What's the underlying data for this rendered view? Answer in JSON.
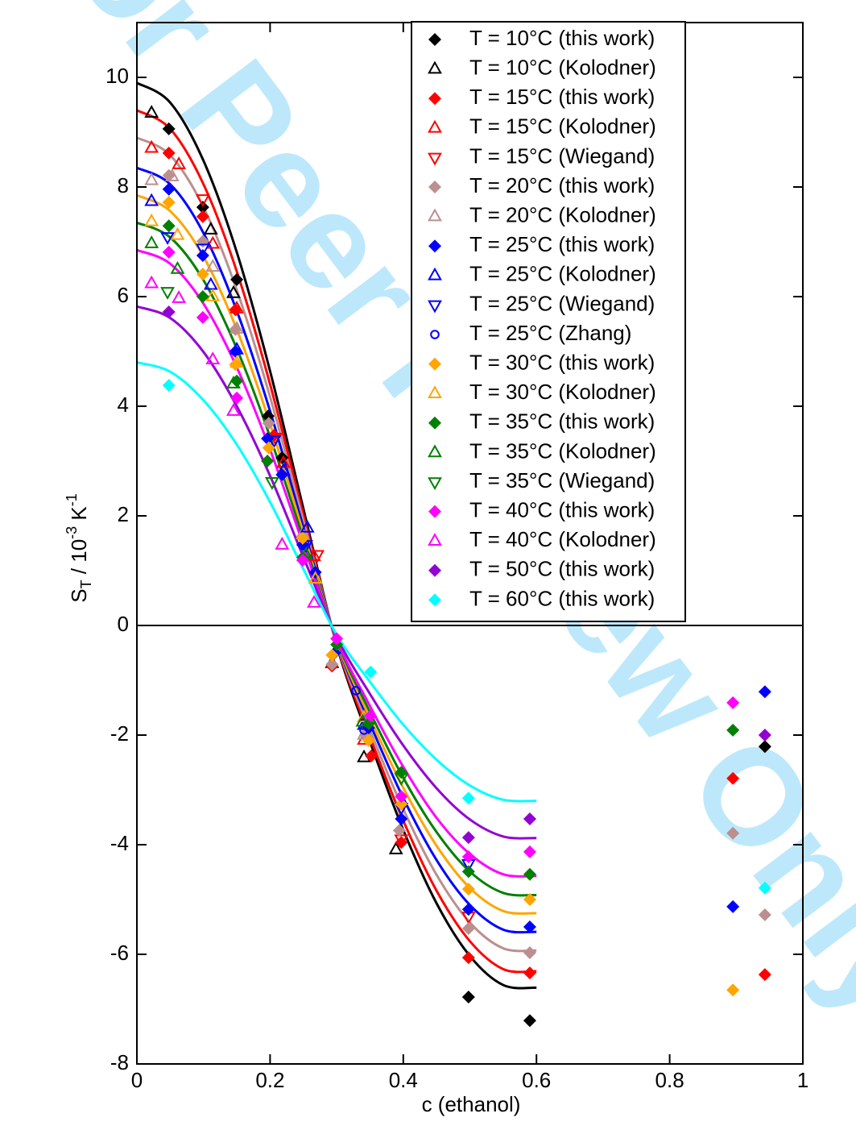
{
  "chart_data": {
    "type": "scatter",
    "watermark": "For Peer Review Only",
    "xlabel": "c (ethanol)",
    "ylabel": [
      "S",
      "T",
      " / 10",
      "-3",
      " K",
      "-1"
    ],
    "xlim": [
      0,
      1
    ],
    "ylim": [
      -8,
      11
    ],
    "xticks": [
      0,
      0.2,
      0.4,
      0.6,
      0.8,
      1
    ],
    "yticks": [
      -8,
      -6,
      -4,
      -2,
      0,
      2,
      4,
      6,
      8,
      10
    ],
    "zero_line": true,
    "series": [
      {
        "name": "T = 10°C (this work)",
        "color": "#000000",
        "marker": "diamond",
        "x": [
          0.048,
          0.099,
          0.15,
          0.197,
          0.218,
          0.498,
          0.59,
          0.943
        ],
        "values": [
          9.06,
          7.63,
          6.31,
          3.82,
          3.06,
          -6.78,
          -7.21,
          -2.21
        ]
      },
      {
        "name": "T = 10°C (Kolodner)",
        "color": "#000000",
        "marker": "triangle-up-open",
        "x": [
          0.022,
          0.111,
          0.145,
          0.293,
          0.341,
          0.389
        ],
        "values": [
          9.35,
          7.22,
          6.06,
          -0.69,
          -2.41,
          -4.09
        ]
      },
      {
        "name": "T = 15°C (this work)",
        "color": "#ff0000",
        "marker": "diamond",
        "x": [
          0.048,
          0.099,
          0.148,
          0.206,
          0.293,
          0.352,
          0.397,
          0.498,
          0.59,
          0.895,
          0.943
        ],
        "values": [
          8.62,
          7.46,
          5.76,
          3.47,
          -0.74,
          -2.38,
          -3.96,
          -6.06,
          -6.34,
          -2.79,
          -6.37
        ]
      },
      {
        "name": "T = 15°C (Kolodner)",
        "color": "#ff0000",
        "marker": "triangle-up-open",
        "x": [
          0.022,
          0.063,
          0.114,
          0.15,
          0.22,
          0.266,
          0.341
        ],
        "values": [
          8.71,
          8.41,
          6.96,
          5.78,
          2.96,
          1.26,
          -2.09
        ]
      },
      {
        "name": "T = 15°C (Wiegand)",
        "color": "#ff0000",
        "marker": "triangle-down-open",
        "x": [
          0.099,
          0.208,
          0.271,
          0.397,
          0.498
        ],
        "values": [
          7.78,
          3.43,
          1.29,
          -3.9,
          -5.31
        ]
      },
      {
        "name": "T = 20°C (this work)",
        "color": "#bc8f8f",
        "marker": "diamond",
        "x": [
          0.048,
          0.099,
          0.148,
          0.198,
          0.249,
          0.293,
          0.343,
          0.394,
          0.498,
          0.59,
          0.895,
          0.943
        ],
        "values": [
          8.21,
          7.01,
          5.4,
          3.69,
          1.63,
          -0.71,
          -2.0,
          -3.74,
          -5.53,
          -5.97,
          -3.79,
          -5.28
        ]
      },
      {
        "name": "T = 20°C (Kolodner)",
        "color": "#bc8f8f",
        "marker": "triangle-up-open",
        "x": [
          0.022,
          0.053,
          0.114,
          0.15,
          0.249,
          0.341
        ],
        "values": [
          8.12,
          8.19,
          6.54,
          5.41,
          1.66,
          -2.0
        ]
      },
      {
        "name": "T = 25°C (this work)",
        "color": "#0000ff",
        "marker": "diamond",
        "x": [
          0.048,
          0.099,
          0.148,
          0.196,
          0.218,
          0.249,
          0.268,
          0.297,
          0.348,
          0.397,
          0.498,
          0.59,
          0.895,
          0.943
        ],
        "values": [
          7.96,
          6.75,
          5.0,
          3.41,
          2.75,
          1.47,
          0.97,
          -0.5,
          -1.87,
          -3.53,
          -5.18,
          -5.5,
          -5.13,
          -1.21
        ]
      },
      {
        "name": "T = 25°C (Kolodner)",
        "color": "#0000ff",
        "marker": "triangle-up-open",
        "x": [
          0.022,
          0.111,
          0.15,
          0.22,
          0.256,
          0.341
        ],
        "values": [
          7.74,
          6.21,
          5.03,
          2.82,
          1.78,
          -1.82
        ]
      },
      {
        "name": "T = 25°C (Wiegand)",
        "color": "#0000ff",
        "marker": "triangle-down-open",
        "x": [
          0.046,
          0.099,
          0.206,
          0.254,
          0.397,
          0.498
        ],
        "values": [
          7.09,
          6.88,
          3.38,
          1.47,
          -3.32,
          -4.35
        ]
      },
      {
        "name": "T = 25°C (Zhang)",
        "color": "#0000ff",
        "marker": "circle-open",
        "x": [
          0.329,
          0.341
        ],
        "values": [
          -1.19,
          -1.91
        ]
      },
      {
        "name": "T = 30°C (this work)",
        "color": "#ffa500",
        "marker": "diamond",
        "x": [
          0.048,
          0.099,
          0.148,
          0.198,
          0.249,
          0.293,
          0.348,
          0.397,
          0.498,
          0.59,
          0.895
        ],
        "values": [
          7.72,
          6.41,
          4.76,
          3.24,
          1.59,
          -0.54,
          -2.1,
          -3.26,
          -4.81,
          -5.0,
          -6.65
        ]
      },
      {
        "name": "T = 30°C (Kolodner)",
        "color": "#ffa500",
        "marker": "triangle-up-open",
        "x": [
          0.022,
          0.061,
          0.114,
          0.15,
          0.268,
          0.341
        ],
        "values": [
          7.37,
          7.12,
          6.0,
          4.79,
          0.85,
          -1.68
        ]
      },
      {
        "name": "T = 35°C (this work)",
        "color": "#008000",
        "marker": "diamond",
        "x": [
          0.048,
          0.099,
          0.15,
          0.196,
          0.249,
          0.3,
          0.348,
          0.397,
          0.498,
          0.59,
          0.895
        ],
        "values": [
          7.29,
          6.0,
          4.46,
          3.0,
          1.24,
          -0.35,
          -1.79,
          -2.68,
          -4.49,
          -4.54,
          -1.91
        ]
      },
      {
        "name": "T = 35°C (Kolodner)",
        "color": "#008000",
        "marker": "triangle-up-open",
        "x": [
          0.022,
          0.061,
          0.145,
          0.254,
          0.339
        ],
        "values": [
          6.97,
          6.5,
          4.41,
          1.29,
          -1.76
        ]
      },
      {
        "name": "T = 35°C (Wiegand)",
        "color": "#008000",
        "marker": "triangle-down-open",
        "x": [
          0.046,
          0.203,
          0.397
        ],
        "values": [
          6.09,
          2.62,
          -2.78
        ]
      },
      {
        "name": "T = 40°C (this work)",
        "color": "#ff00ff",
        "marker": "diamond",
        "x": [
          0.048,
          0.099,
          0.15,
          0.249,
          0.3,
          0.351,
          0.397,
          0.498,
          0.59,
          0.895
        ],
        "values": [
          6.81,
          5.62,
          4.15,
          1.19,
          -0.24,
          -1.65,
          -3.12,
          -4.22,
          -4.13,
          -1.41
        ]
      },
      {
        "name": "T = 40°C (Kolodner)",
        "color": "#ff00ff",
        "marker": "triangle-up-open",
        "x": [
          0.022,
          0.063,
          0.114,
          0.145,
          0.218,
          0.266
        ],
        "values": [
          6.24,
          5.97,
          4.85,
          3.91,
          1.47,
          0.41
        ]
      },
      {
        "name": "T = 50°C (this work)",
        "color": "#9400d3",
        "marker": "diamond",
        "x": [
          0.048,
          0.498,
          0.59,
          0.943
        ],
        "values": [
          5.72,
          -3.87,
          -3.53,
          -2.0
        ]
      },
      {
        "name": "T = 60°C (this work)",
        "color": "#00ffff",
        "marker": "diamond",
        "x": [
          0.048,
          0.351,
          0.498,
          0.943
        ],
        "values": [
          4.38,
          -0.85,
          -3.15,
          -4.79
        ]
      }
    ],
    "fits": [
      {
        "color": "#000000",
        "x": [
          0,
          0.05,
          0.1,
          0.15,
          0.2,
          0.25,
          0.3,
          0.35,
          0.4,
          0.45,
          0.5,
          0.55,
          0.6
        ],
        "values": [
          9.9,
          9.54,
          8.48,
          6.81,
          4.64,
          2.13,
          -0.36,
          -2.12,
          -3.73,
          -5.07,
          -6.03,
          -6.56,
          -6.61
        ]
      },
      {
        "color": "#ff0000",
        "x": [
          0,
          0.05,
          0.1,
          0.15,
          0.2,
          0.25,
          0.3,
          0.35,
          0.4,
          0.45,
          0.5,
          0.55,
          0.6
        ],
        "values": [
          9.4,
          9.06,
          8.05,
          6.46,
          4.4,
          2.02,
          -0.34,
          -2.03,
          -3.56,
          -4.84,
          -5.76,
          -6.27,
          -6.31
        ]
      },
      {
        "color": "#bc8f8f",
        "x": [
          0,
          0.05,
          0.1,
          0.15,
          0.2,
          0.25,
          0.3,
          0.35,
          0.4,
          0.45,
          0.5,
          0.55,
          0.6
        ],
        "values": [
          8.9,
          8.58,
          7.63,
          6.12,
          4.17,
          1.91,
          -0.32,
          -1.91,
          -3.35,
          -4.55,
          -5.42,
          -5.89,
          -5.93
        ]
      },
      {
        "color": "#0000ff",
        "x": [
          0,
          0.05,
          0.1,
          0.15,
          0.2,
          0.25,
          0.3,
          0.35,
          0.4,
          0.45,
          0.5,
          0.55,
          0.6
        ],
        "values": [
          8.35,
          8.05,
          7.16,
          5.74,
          3.91,
          1.79,
          -0.3,
          -1.79,
          -3.15,
          -4.28,
          -5.1,
          -5.55,
          -5.59
        ]
      },
      {
        "color": "#ffa500",
        "x": [
          0,
          0.05,
          0.1,
          0.15,
          0.2,
          0.25,
          0.3,
          0.35,
          0.4,
          0.45,
          0.5,
          0.55,
          0.6
        ],
        "values": [
          7.85,
          7.56,
          6.73,
          5.4,
          3.68,
          1.69,
          -0.29,
          -1.69,
          -2.96,
          -4.02,
          -4.79,
          -5.21,
          -5.25
        ]
      },
      {
        "color": "#008000",
        "x": [
          0,
          0.05,
          0.1,
          0.15,
          0.2,
          0.25,
          0.3,
          0.35,
          0.4,
          0.45,
          0.5,
          0.55,
          0.6
        ],
        "values": [
          7.35,
          7.08,
          6.3,
          5.05,
          3.44,
          1.58,
          -0.27,
          -1.58,
          -2.78,
          -3.77,
          -4.49,
          -4.88,
          -4.92
        ]
      },
      {
        "color": "#ff00ff",
        "x": [
          0,
          0.05,
          0.1,
          0.15,
          0.2,
          0.25,
          0.3,
          0.35,
          0.4,
          0.45,
          0.5,
          0.55,
          0.6
        ],
        "values": [
          6.85,
          6.6,
          5.87,
          4.71,
          3.21,
          1.47,
          -0.25,
          -1.47,
          -2.58,
          -3.51,
          -4.17,
          -4.54,
          -4.57
        ]
      },
      {
        "color": "#9400d3",
        "x": [
          0,
          0.05,
          0.1,
          0.15,
          0.2,
          0.25,
          0.3,
          0.35,
          0.4,
          0.45,
          0.5,
          0.55,
          0.6
        ],
        "values": [
          5.82,
          5.61,
          4.99,
          4.0,
          2.73,
          1.25,
          -0.21,
          -1.25,
          -2.19,
          -2.97,
          -3.54,
          -3.85,
          -3.88
        ]
      },
      {
        "color": "#00ffff",
        "x": [
          0,
          0.05,
          0.1,
          0.15,
          0.2,
          0.25,
          0.3,
          0.35,
          0.4,
          0.45,
          0.5,
          0.55,
          0.6
        ],
        "values": [
          4.8,
          4.63,
          4.11,
          3.3,
          2.25,
          1.03,
          -0.17,
          -1.03,
          -1.81,
          -2.45,
          -2.92,
          -3.18,
          -3.2
        ]
      }
    ]
  }
}
